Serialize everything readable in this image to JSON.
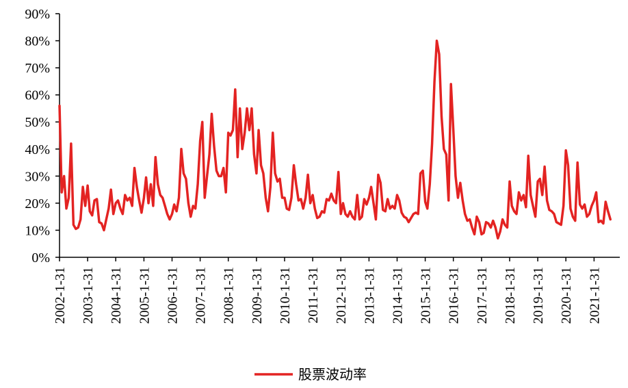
{
  "chart_data": {
    "type": "line",
    "title": "",
    "xlabel": "",
    "ylabel": "",
    "ylim": [
      0,
      90
    ],
    "y_ticks": [
      0,
      10,
      20,
      30,
      40,
      50,
      60,
      70,
      80,
      90
    ],
    "y_tick_labels": [
      "0%",
      "10%",
      "20%",
      "30%",
      "40%",
      "50%",
      "60%",
      "70%",
      "80%",
      "90%"
    ],
    "x_tick_labels": [
      "2002-1-31",
      "2003-1-31",
      "2004-1-31",
      "2005-1-31",
      "2006-1-31",
      "2007-1-31",
      "2008-1-31",
      "2009-1-31",
      "2010-1-31",
      "2011-1-31",
      "2012-1-31",
      "2013-1-31",
      "2014-1-31",
      "2015-1-31",
      "2016-1-31",
      "2017-1-31",
      "2018-1-31",
      "2019-1-31",
      "2020-1-31",
      "2021-1-31"
    ],
    "x_range": [
      "2002-01-31",
      "2021-12-31"
    ],
    "grid": false,
    "legend_position": "bottom-center",
    "series": [
      {
        "name": "股票波动率",
        "color": "#e32322",
        "points": [
          [
            "2002-01-31",
            56
          ],
          [
            "2002-02-28",
            24
          ],
          [
            "2002-03-31",
            30
          ],
          [
            "2002-04-30",
            18
          ],
          [
            "2002-05-31",
            22
          ],
          [
            "2002-06-30",
            42
          ],
          [
            "2002-07-31",
            12
          ],
          [
            "2002-08-31",
            10.5
          ],
          [
            "2002-09-30",
            11
          ],
          [
            "2002-10-31",
            14
          ],
          [
            "2002-11-30",
            26
          ],
          [
            "2002-12-31",
            19
          ],
          [
            "2003-01-31",
            26.5
          ],
          [
            "2003-02-28",
            17
          ],
          [
            "2003-03-31",
            15.5
          ],
          [
            "2003-04-30",
            21
          ],
          [
            "2003-05-31",
            21.5
          ],
          [
            "2003-06-30",
            13
          ],
          [
            "2003-07-31",
            12.5
          ],
          [
            "2003-08-31",
            10
          ],
          [
            "2003-09-30",
            14
          ],
          [
            "2003-10-31",
            18
          ],
          [
            "2003-11-30",
            25
          ],
          [
            "2003-12-31",
            16
          ],
          [
            "2004-01-31",
            20
          ],
          [
            "2004-02-29",
            21
          ],
          [
            "2004-03-31",
            18
          ],
          [
            "2004-04-30",
            16
          ],
          [
            "2004-05-31",
            23
          ],
          [
            "2004-06-30",
            21
          ],
          [
            "2004-07-31",
            22
          ],
          [
            "2004-08-31",
            19
          ],
          [
            "2004-09-30",
            33
          ],
          [
            "2004-10-31",
            26
          ],
          [
            "2004-11-30",
            21
          ],
          [
            "2004-12-31",
            16.5
          ],
          [
            "2005-01-31",
            22
          ],
          [
            "2005-02-28",
            29.5
          ],
          [
            "2005-03-31",
            20
          ],
          [
            "2005-04-30",
            27
          ],
          [
            "2005-05-31",
            19
          ],
          [
            "2005-06-30",
            37
          ],
          [
            "2005-07-31",
            27
          ],
          [
            "2005-08-31",
            23
          ],
          [
            "2005-09-30",
            22
          ],
          [
            "2005-10-31",
            19
          ],
          [
            "2005-11-30",
            16
          ],
          [
            "2005-12-31",
            14
          ],
          [
            "2006-01-31",
            16
          ],
          [
            "2006-02-28",
            19.5
          ],
          [
            "2006-03-31",
            17
          ],
          [
            "2006-04-30",
            22
          ],
          [
            "2006-05-31",
            40
          ],
          [
            "2006-06-30",
            31
          ],
          [
            "2006-07-31",
            29
          ],
          [
            "2006-08-31",
            20
          ],
          [
            "2006-09-30",
            15
          ],
          [
            "2006-10-31",
            19
          ],
          [
            "2006-11-30",
            18
          ],
          [
            "2006-12-31",
            27
          ],
          [
            "2007-01-31",
            43
          ],
          [
            "2007-02-28",
            50
          ],
          [
            "2007-03-31",
            22
          ],
          [
            "2007-04-30",
            30
          ],
          [
            "2007-05-31",
            38
          ],
          [
            "2007-06-30",
            53
          ],
          [
            "2007-07-31",
            41
          ],
          [
            "2007-08-31",
            32
          ],
          [
            "2007-09-30",
            30
          ],
          [
            "2007-10-31",
            30
          ],
          [
            "2007-11-30",
            33
          ],
          [
            "2007-12-31",
            24
          ],
          [
            "2008-01-31",
            46
          ],
          [
            "2008-02-29",
            45
          ],
          [
            "2008-03-31",
            47
          ],
          [
            "2008-04-30",
            62
          ],
          [
            "2008-05-31",
            37
          ],
          [
            "2008-06-30",
            55
          ],
          [
            "2008-07-31",
            40
          ],
          [
            "2008-08-31",
            46
          ],
          [
            "2008-09-30",
            55
          ],
          [
            "2008-10-31",
            47
          ],
          [
            "2008-11-30",
            55
          ],
          [
            "2008-12-31",
            38
          ],
          [
            "2009-01-31",
            31
          ],
          [
            "2009-02-28",
            47
          ],
          [
            "2009-03-31",
            34
          ],
          [
            "2009-04-30",
            31
          ],
          [
            "2009-05-31",
            22
          ],
          [
            "2009-06-30",
            17
          ],
          [
            "2009-07-31",
            26
          ],
          [
            "2009-08-31",
            46
          ],
          [
            "2009-09-30",
            31
          ],
          [
            "2009-10-31",
            28
          ],
          [
            "2009-11-30",
            29
          ],
          [
            "2009-12-31",
            22
          ],
          [
            "2010-01-31",
            22
          ],
          [
            "2010-02-28",
            18
          ],
          [
            "2010-03-31",
            17.5
          ],
          [
            "2010-04-30",
            22
          ],
          [
            "2010-05-31",
            34
          ],
          [
            "2010-06-30",
            27
          ],
          [
            "2010-07-31",
            21
          ],
          [
            "2010-08-31",
            21.5
          ],
          [
            "2010-09-30",
            18
          ],
          [
            "2010-10-31",
            22
          ],
          [
            "2010-11-30",
            30.5
          ],
          [
            "2010-12-31",
            20
          ],
          [
            "2011-01-31",
            23
          ],
          [
            "2011-02-28",
            18
          ],
          [
            "2011-03-31",
            14.5
          ],
          [
            "2011-04-30",
            15
          ],
          [
            "2011-05-31",
            17
          ],
          [
            "2011-06-30",
            16.5
          ],
          [
            "2011-07-31",
            21.5
          ],
          [
            "2011-08-31",
            21
          ],
          [
            "2011-09-30",
            23.5
          ],
          [
            "2011-10-31",
            21
          ],
          [
            "2011-11-30",
            20
          ],
          [
            "2011-12-31",
            31.5
          ],
          [
            "2012-01-31",
            16
          ],
          [
            "2012-02-29",
            20
          ],
          [
            "2012-03-31",
            16
          ],
          [
            "2012-04-30",
            15
          ],
          [
            "2012-05-31",
            17
          ],
          [
            "2012-06-30",
            15
          ],
          [
            "2012-07-31",
            14
          ],
          [
            "2012-08-31",
            23
          ],
          [
            "2012-09-30",
            14
          ],
          [
            "2012-10-31",
            15
          ],
          [
            "2012-11-30",
            21.5
          ],
          [
            "2012-12-31",
            19.5
          ],
          [
            "2013-01-31",
            22
          ],
          [
            "2013-02-28",
            26
          ],
          [
            "2013-03-31",
            20
          ],
          [
            "2013-04-30",
            14
          ],
          [
            "2013-05-31",
            30.5
          ],
          [
            "2013-06-30",
            27.5
          ],
          [
            "2013-07-31",
            17.5
          ],
          [
            "2013-08-31",
            17
          ],
          [
            "2013-09-30",
            21.5
          ],
          [
            "2013-10-31",
            18
          ],
          [
            "2013-11-30",
            19
          ],
          [
            "2013-12-31",
            18
          ],
          [
            "2014-01-31",
            23
          ],
          [
            "2014-02-28",
            21
          ],
          [
            "2014-03-31",
            16.5
          ],
          [
            "2014-04-30",
            15
          ],
          [
            "2014-05-31",
            14.5
          ],
          [
            "2014-06-30",
            13
          ],
          [
            "2014-07-31",
            14.5
          ],
          [
            "2014-08-31",
            16
          ],
          [
            "2014-09-30",
            16.5
          ],
          [
            "2014-10-31",
            16
          ],
          [
            "2014-11-30",
            31
          ],
          [
            "2014-12-31",
            32
          ],
          [
            "2015-01-31",
            20.5
          ],
          [
            "2015-02-28",
            18
          ],
          [
            "2015-03-31",
            27
          ],
          [
            "2015-04-30",
            42
          ],
          [
            "2015-05-31",
            65
          ],
          [
            "2015-06-30",
            80
          ],
          [
            "2015-07-31",
            75
          ],
          [
            "2015-08-31",
            52
          ],
          [
            "2015-09-30",
            40
          ],
          [
            "2015-10-31",
            38
          ],
          [
            "2015-11-30",
            21
          ],
          [
            "2015-12-31",
            64
          ],
          [
            "2016-01-31",
            47
          ],
          [
            "2016-02-29",
            30
          ],
          [
            "2016-03-31",
            22
          ],
          [
            "2016-04-30",
            27.5
          ],
          [
            "2016-05-31",
            21
          ],
          [
            "2016-06-30",
            16
          ],
          [
            "2016-07-31",
            13.5
          ],
          [
            "2016-08-31",
            14
          ],
          [
            "2016-09-30",
            11
          ],
          [
            "2016-10-31",
            8.5
          ],
          [
            "2016-11-30",
            15
          ],
          [
            "2016-12-31",
            13
          ],
          [
            "2017-01-31",
            8.5
          ],
          [
            "2017-02-28",
            9
          ],
          [
            "2017-03-31",
            13
          ],
          [
            "2017-04-30",
            12.5
          ],
          [
            "2017-05-31",
            11
          ],
          [
            "2017-06-30",
            13.5
          ],
          [
            "2017-07-31",
            11
          ],
          [
            "2017-08-31",
            7
          ],
          [
            "2017-09-30",
            9.5
          ],
          [
            "2017-10-31",
            14
          ],
          [
            "2017-11-30",
            12
          ],
          [
            "2017-12-31",
            11
          ],
          [
            "2018-01-31",
            28
          ],
          [
            "2018-02-28",
            19
          ],
          [
            "2018-03-31",
            17
          ],
          [
            "2018-04-30",
            16
          ],
          [
            "2018-05-31",
            24
          ],
          [
            "2018-06-30",
            21
          ],
          [
            "2018-07-31",
            23
          ],
          [
            "2018-08-31",
            18.5
          ],
          [
            "2018-09-30",
            37.5
          ],
          [
            "2018-10-31",
            23
          ],
          [
            "2018-11-30",
            19
          ],
          [
            "2018-12-31",
            15
          ],
          [
            "2019-01-31",
            28
          ],
          [
            "2019-02-28",
            29
          ],
          [
            "2019-03-31",
            23
          ],
          [
            "2019-04-30",
            33.5
          ],
          [
            "2019-05-31",
            21
          ],
          [
            "2019-06-30",
            17.5
          ],
          [
            "2019-07-31",
            17
          ],
          [
            "2019-08-31",
            16
          ],
          [
            "2019-09-30",
            13
          ],
          [
            "2019-10-31",
            12.5
          ],
          [
            "2019-11-30",
            12
          ],
          [
            "2019-12-31",
            19
          ],
          [
            "2020-01-31",
            39.5
          ],
          [
            "2020-02-29",
            34
          ],
          [
            "2020-03-31",
            18
          ],
          [
            "2020-04-30",
            15
          ],
          [
            "2020-05-31",
            13.5
          ],
          [
            "2020-06-30",
            35
          ],
          [
            "2020-07-31",
            19.5
          ],
          [
            "2020-08-31",
            18
          ],
          [
            "2020-09-30",
            19.5
          ],
          [
            "2020-10-31",
            15
          ],
          [
            "2020-11-30",
            16
          ],
          [
            "2020-12-31",
            19
          ],
          [
            "2021-01-31",
            21
          ],
          [
            "2021-02-28",
            24
          ],
          [
            "2021-03-31",
            13
          ],
          [
            "2021-04-30",
            13.5
          ],
          [
            "2021-05-31",
            12.5
          ],
          [
            "2021-06-30",
            20.5
          ],
          [
            "2021-07-31",
            17
          ],
          [
            "2021-08-31",
            14
          ]
        ]
      }
    ]
  }
}
